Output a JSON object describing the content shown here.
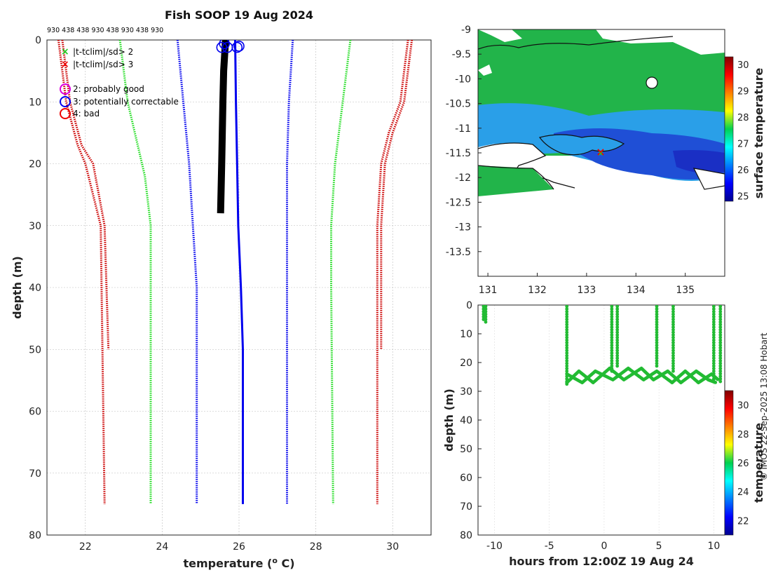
{
  "credit": "© IMOS 22-Sep-2025 13:08 Hobart",
  "chart_data": [
    {
      "type": "line",
      "title": "Fish SOOP 19 Aug 2024",
      "instrument_codes": "930 438 438 930 438 930 438 930",
      "xlabel_main": "temperature",
      "xlabel_superscript": "o",
      "xlabel_unit": " C",
      "ylabel": "depth (m)",
      "xlim": [
        21,
        31
      ],
      "ylim": [
        0,
        80
      ],
      "xticks": [
        22,
        24,
        26,
        28,
        30
      ],
      "yticks": [
        0,
        10,
        20,
        30,
        40,
        50,
        60,
        70,
        80
      ],
      "legend": [
        "|t-tclim|/sd> 2",
        "|t-tclim|/sd> 3",
        "2: probably good",
        "3: potentially correctable",
        "4: bad"
      ],
      "series": [
        {
          "name": "clim -3sd short",
          "color": "#cc0000",
          "depth": [
            0,
            10,
            17,
            20,
            30,
            50
          ],
          "temp": [
            21.4,
            21.6,
            21.9,
            22.2,
            22.5,
            22.6
          ]
        },
        {
          "name": "clim -3sd",
          "color": "#cc0000",
          "depth": [
            0,
            10,
            17,
            20,
            30,
            75
          ],
          "temp": [
            21.3,
            21.5,
            21.8,
            22.0,
            22.4,
            22.5
          ]
        },
        {
          "name": "clim -2sd",
          "color": "#22dd22",
          "depth": [
            0,
            10,
            18,
            22,
            30,
            75
          ],
          "temp": [
            22.9,
            23.1,
            23.4,
            23.55,
            23.7,
            23.7
          ]
        },
        {
          "name": "clim -1sd",
          "color": "#0000ee",
          "depth": [
            0,
            10,
            20,
            30,
            40,
            75
          ],
          "temp": [
            24.4,
            24.55,
            24.7,
            24.8,
            24.9,
            24.9
          ]
        },
        {
          "name": "clim +1sd",
          "color": "#0000ee",
          "depth": [
            0,
            10,
            20,
            30,
            40,
            75
          ],
          "temp": [
            27.4,
            27.3,
            27.25,
            27.25,
            27.25,
            27.25
          ]
        },
        {
          "name": "clim +2sd",
          "color": "#22dd22",
          "depth": [
            0,
            10,
            20,
            30,
            40,
            75
          ],
          "temp": [
            28.9,
            28.7,
            28.5,
            28.4,
            28.4,
            28.45
          ]
        },
        {
          "name": "clim +3sd",
          "color": "#cc0000",
          "depth": [
            0,
            10,
            15,
            20,
            30,
            75
          ],
          "temp": [
            30.4,
            30.2,
            29.9,
            29.7,
            29.6,
            29.6
          ]
        },
        {
          "name": "clim +3sd short",
          "color": "#cc0000",
          "depth": [
            0,
            10,
            15,
            20,
            30,
            50
          ],
          "temp": [
            30.5,
            30.3,
            30.0,
            29.8,
            29.7,
            29.7
          ]
        }
      ],
      "observed": [
        {
          "name": "observed profiles (black)",
          "color": "#000000",
          "depth": [
            0,
            5,
            10,
            20,
            28
          ],
          "temp": [
            25.65,
            25.6,
            25.58,
            25.55,
            25.52
          ]
        },
        {
          "name": "observed profile (blue)",
          "color": "#0000ee",
          "depth": [
            0,
            10,
            20,
            30,
            40,
            50,
            75
          ],
          "temp": [
            25.9,
            25.92,
            25.95,
            25.98,
            26.05,
            26.1,
            26.1
          ]
        }
      ],
      "flags": [
        {
          "temp": 25.55,
          "depth": 1.2,
          "color": "#0000ee"
        },
        {
          "temp": 25.7,
          "depth": 1.2,
          "color": "#0000ee"
        },
        {
          "temp": 25.62,
          "depth": 0.6,
          "color": "#0000ee"
        },
        {
          "temp": 25.95,
          "depth": 1.2,
          "color": "#0000ee"
        },
        {
          "temp": 26.0,
          "depth": 1.0,
          "color": "#0000ee"
        }
      ]
    },
    {
      "type": "heatmap",
      "xlim": [
        130.8,
        135.8
      ],
      "ylim": [
        -14,
        -9
      ],
      "xticks": [
        131,
        132,
        133,
        134,
        135
      ],
      "yticks": [
        -9,
        -9.5,
        -10,
        -10.5,
        -11,
        -11.5,
        -12,
        -12.5,
        -13,
        -13.5
      ],
      "colorbar_label": "surface temperature",
      "colorbar_range": [
        24.8,
        30.3
      ],
      "colorbar_ticks": [
        25,
        26,
        27,
        28,
        29,
        30
      ],
      "ship_position": {
        "lon": 133.3,
        "lat": -11.45
      }
    },
    {
      "type": "scatter",
      "xlabel": "hours from 12:00Z 19 Aug 24",
      "ylabel": "depth (m)",
      "xlim": [
        -11.5,
        11
      ],
      "ylim": [
        0,
        80
      ],
      "xticks": [
        -10,
        -5,
        0,
        5,
        10
      ],
      "yticks": [
        0,
        10,
        20,
        30,
        40,
        50,
        60,
        70,
        80
      ],
      "colorbar_label": "temperature",
      "colorbar_range": [
        21,
        31
      ],
      "colorbar_ticks": [
        22,
        24,
        26,
        28,
        30
      ],
      "point_color": "#22bb33",
      "vertical_casts": [
        {
          "x": -11.0,
          "top": 0.5,
          "bottom": 5
        },
        {
          "x": -10.8,
          "top": 0.5,
          "bottom": 6
        },
        {
          "x": -3.4,
          "top": 0.5,
          "bottom": 28
        },
        {
          "x": 0.7,
          "top": 0.5,
          "bottom": 23
        },
        {
          "x": 1.2,
          "top": 0.5,
          "bottom": 22
        },
        {
          "x": 4.8,
          "top": 0.5,
          "bottom": 22
        },
        {
          "x": 6.3,
          "top": 0.5,
          "bottom": 23
        },
        {
          "x": 10.0,
          "top": 0.5,
          "bottom": 27
        },
        {
          "x": 10.6,
          "top": 0.5,
          "bottom": 27
        }
      ],
      "tow_track_a": {
        "x": [
          -3.4,
          -2.3,
          -1.0,
          0.5,
          1.8,
          3.4,
          4.5,
          5.8,
          7.0,
          8.4,
          9.5,
          10.2
        ],
        "y": [
          27,
          23,
          27,
          22,
          26,
          22,
          26,
          23,
          27,
          23,
          26,
          27
        ]
      },
      "tow_track_b": {
        "x": [
          -3.4,
          -2.0,
          -0.8,
          0.8,
          2.2,
          3.6,
          4.8,
          6.2,
          7.4,
          8.6,
          9.8,
          10.4
        ],
        "y": [
          24,
          27,
          23,
          26,
          22,
          26,
          23,
          27,
          23,
          27,
          24,
          26
        ]
      }
    }
  ]
}
